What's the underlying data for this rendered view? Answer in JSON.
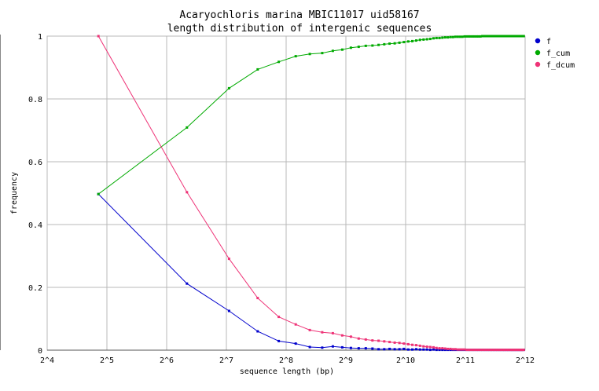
{
  "chart_data": {
    "type": "line",
    "title": "Acaryochloris marina MBIC11017 uid58167",
    "subtitle": "length distribution of intergenic sequences",
    "xlabel": "sequence length (bp)",
    "ylabel": "frequency",
    "x_scale": "log2",
    "xlim": [
      16,
      4096
    ],
    "ylim": [
      0,
      1
    ],
    "grid": true,
    "legend_position": "right",
    "x_ticks": [
      "2^4",
      "2^5",
      "2^6",
      "2^7",
      "2^8",
      "2^9",
      "2^10",
      "2^11",
      "2^12"
    ],
    "y_ticks": [
      "0",
      "0.2",
      "0.4",
      "0.6",
      "0.8",
      "1"
    ],
    "series": [
      {
        "name": "f",
        "color": "#0000cc",
        "x": [
          29,
          81,
          132,
          184,
          235,
          286,
          337,
          389,
          440,
          491,
          543,
          594,
          645,
          697,
          748,
          799,
          850,
          902,
          953,
          1004,
          1056,
          1107,
          1158,
          1210,
          1261,
          1312,
          1364,
          1415,
          1466,
          1517,
          1569,
          1620,
          1671,
          1723,
          1774,
          1825,
          1877,
          1928,
          1979,
          2031,
          2082,
          2133,
          2185,
          2236,
          2287,
          2339,
          2390,
          2441,
          2493,
          2544,
          2595,
          2647,
          2698,
          2749,
          2800,
          2852,
          2903,
          2954,
          3006,
          3057,
          3108,
          3160,
          3211,
          3262,
          3314,
          3365,
          3416,
          3468,
          3519,
          3570,
          3622,
          3673,
          3724,
          3776,
          3827,
          3878,
          3930,
          3981,
          4032
        ],
        "y": [
          0.497,
          0.212,
          0.125,
          0.06,
          0.029,
          0.021,
          0.01,
          0.008,
          0.012,
          0.009,
          0.007,
          0.006,
          0.006,
          0.005,
          0.003,
          0.003,
          0.004,
          0.003,
          0.003,
          0.004,
          0.002,
          0.002,
          0.003,
          0.002,
          0.002,
          0.002,
          0.001,
          0.002,
          0.001,
          0.001,
          0.001,
          0.001,
          0.001,
          0.001,
          0.001,
          0.001,
          0.001,
          0.001,
          0.001,
          0.001,
          0.001,
          0.001,
          0.001,
          0.001,
          0.001,
          0.001,
          0.001,
          0.001,
          0.001,
          0.001,
          0.001,
          0.001,
          0.001,
          0.001,
          0.001,
          0.001,
          0.001,
          0.001,
          0.001,
          0.001,
          0.001,
          0.001,
          0.001,
          0.001,
          0.001,
          0.001,
          0.001,
          0.001,
          0.001,
          0.001,
          0.001,
          0.001,
          0.001,
          0.001,
          0.001,
          0.001,
          0.001,
          0.001,
          0.001
        ]
      },
      {
        "name": "f_cum",
        "color": "#00aa00",
        "x": [
          29,
          81,
          132,
          184,
          235,
          286,
          337,
          389,
          440,
          491,
          543,
          594,
          645,
          697,
          748,
          799,
          850,
          902,
          953,
          1004,
          1056,
          1107,
          1158,
          1210,
          1261,
          1312,
          1364,
          1415,
          1466,
          1517,
          1569,
          1620,
          1671,
          1723,
          1774,
          1825,
          1877,
          1928,
          1979,
          2031,
          2082,
          2133,
          2185,
          2236,
          2287,
          2339,
          2390,
          2441,
          2493,
          2544,
          2595,
          2647,
          2698,
          2749,
          2800,
          2852,
          2903,
          2954,
          3006,
          3057,
          3108,
          3160,
          3211,
          3262,
          3314,
          3365,
          3416,
          3468,
          3519,
          3570,
          3622,
          3673,
          3724,
          3776,
          3827,
          3878,
          3930,
          3981,
          4032
        ],
        "y": [
          0.497,
          0.709,
          0.834,
          0.894,
          0.918,
          0.936,
          0.943,
          0.946,
          0.953,
          0.957,
          0.963,
          0.966,
          0.969,
          0.97,
          0.972,
          0.974,
          0.976,
          0.977,
          0.979,
          0.981,
          0.983,
          0.984,
          0.986,
          0.988,
          0.989,
          0.99,
          0.991,
          0.993,
          0.994,
          0.994,
          0.995,
          0.996,
          0.996,
          0.997,
          0.997,
          0.998,
          0.998,
          0.998,
          0.998,
          0.999,
          0.999,
          0.999,
          0.999,
          0.999,
          0.999,
          0.999,
          0.999,
          0.999,
          1.0,
          1.0,
          1.0,
          1.0,
          1.0,
          1.0,
          1.0,
          1.0,
          1.0,
          1.0,
          1.0,
          1.0,
          1.0,
          1.0,
          1.0,
          1.0,
          1.0,
          1.0,
          1.0,
          1.0,
          1.0,
          1.0,
          1.0,
          1.0,
          1.0,
          1.0,
          1.0,
          1.0,
          1.0,
          1.0,
          1.0
        ]
      },
      {
        "name": "f_dcum",
        "color": "#ee3377",
        "x": [
          29,
          81,
          132,
          184,
          235,
          286,
          337,
          389,
          440,
          491,
          543,
          594,
          645,
          697,
          748,
          799,
          850,
          902,
          953,
          1004,
          1056,
          1107,
          1158,
          1210,
          1261,
          1312,
          1364,
          1415,
          1466,
          1517,
          1569,
          1620,
          1671,
          1723,
          1774,
          1825,
          1877,
          1928,
          1979,
          2031,
          2082,
          2133,
          2185,
          2236,
          2287,
          2339,
          2390,
          2441,
          2493,
          2544,
          2595,
          2647,
          2698,
          2749,
          2800,
          2852,
          2903,
          2954,
          3006,
          3057,
          3108,
          3160,
          3211,
          3262,
          3314,
          3365,
          3416,
          3468,
          3519,
          3570,
          3622,
          3673,
          3724,
          3776,
          3827,
          3878,
          3930,
          3981,
          4032
        ],
        "y": [
          1.0,
          0.503,
          0.291,
          0.166,
          0.106,
          0.082,
          0.064,
          0.057,
          0.054,
          0.047,
          0.043,
          0.037,
          0.034,
          0.031,
          0.03,
          0.028,
          0.026,
          0.024,
          0.023,
          0.021,
          0.019,
          0.017,
          0.016,
          0.014,
          0.012,
          0.011,
          0.01,
          0.009,
          0.007,
          0.006,
          0.006,
          0.005,
          0.004,
          0.004,
          0.003,
          0.003,
          0.002,
          0.002,
          0.002,
          0.002,
          0.001,
          0.001,
          0.001,
          0.001,
          0.001,
          0.001,
          0.001,
          0.001,
          0.001,
          0.001,
          0.001,
          0.001,
          0.001,
          0.001,
          0.001,
          0.001,
          0.001,
          0.001,
          0.001,
          0.001,
          0.001,
          0.001,
          0.001,
          0.001,
          0.001,
          0.001,
          0.001,
          0.001,
          0.001,
          0.001,
          0.001,
          0.001,
          0.001,
          0.001,
          0.001,
          0.001,
          0.001,
          0.001,
          0.001
        ]
      }
    ]
  }
}
